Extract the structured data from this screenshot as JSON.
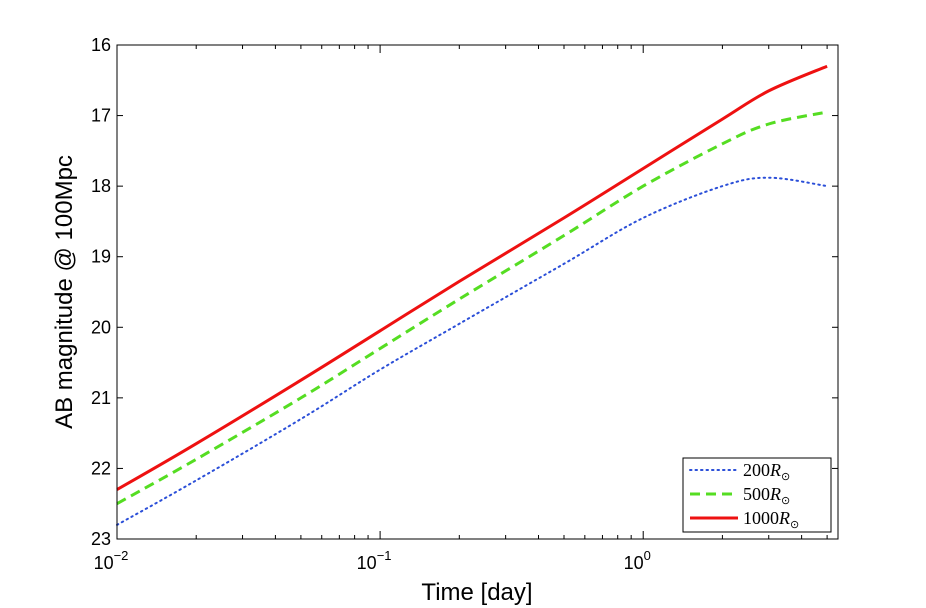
{
  "chart_data": {
    "type": "line",
    "title": "",
    "xlabel": "Time [day]",
    "ylabel": "AB magnitude @ 100Mpc",
    "x_scale": "log",
    "xlim": [
      0.01,
      5.5
    ],
    "ylim": [
      23,
      16
    ],
    "y_reversed": true,
    "x_ticks": [
      {
        "value": 0.01,
        "base": "10",
        "exp": "−2"
      },
      {
        "value": 0.1,
        "base": "10",
        "exp": "−1"
      },
      {
        "value": 1,
        "base": "10",
        "exp": "0"
      }
    ],
    "y_ticks": [
      16,
      17,
      18,
      19,
      20,
      21,
      22,
      23
    ],
    "y_tick_labels": [
      "16",
      "17",
      "18",
      "19",
      "20",
      "21",
      "22",
      "23"
    ],
    "grid": false,
    "legend_position": "bottom-right",
    "series": [
      {
        "name": "200",
        "name_sub": "⊙",
        "color": "#2b4fd8",
        "style": "dotted",
        "x": [
          0.01,
          0.02,
          0.05,
          0.1,
          0.2,
          0.5,
          1,
          2,
          3,
          5
        ],
        "y": [
          22.8,
          22.17,
          21.3,
          20.6,
          19.95,
          19.1,
          18.45,
          18.0,
          17.88,
          18.0
        ]
      },
      {
        "name": "500",
        "name_sub": "⊙",
        "color": "#55dd22",
        "style": "dashed",
        "x": [
          0.01,
          0.02,
          0.05,
          0.1,
          0.2,
          0.5,
          1,
          2,
          3,
          5
        ],
        "y": [
          22.5,
          21.87,
          21.0,
          20.3,
          19.6,
          18.7,
          18.0,
          17.4,
          17.12,
          16.95
        ]
      },
      {
        "name": "1000",
        "name_sub": "⊙",
        "color": "#ee1111",
        "style": "solid",
        "x": [
          0.01,
          0.02,
          0.05,
          0.1,
          0.2,
          0.5,
          1,
          2,
          3,
          5
        ],
        "y": [
          22.3,
          21.65,
          20.75,
          20.05,
          19.35,
          18.45,
          17.75,
          17.05,
          16.65,
          16.3
        ]
      }
    ]
  }
}
